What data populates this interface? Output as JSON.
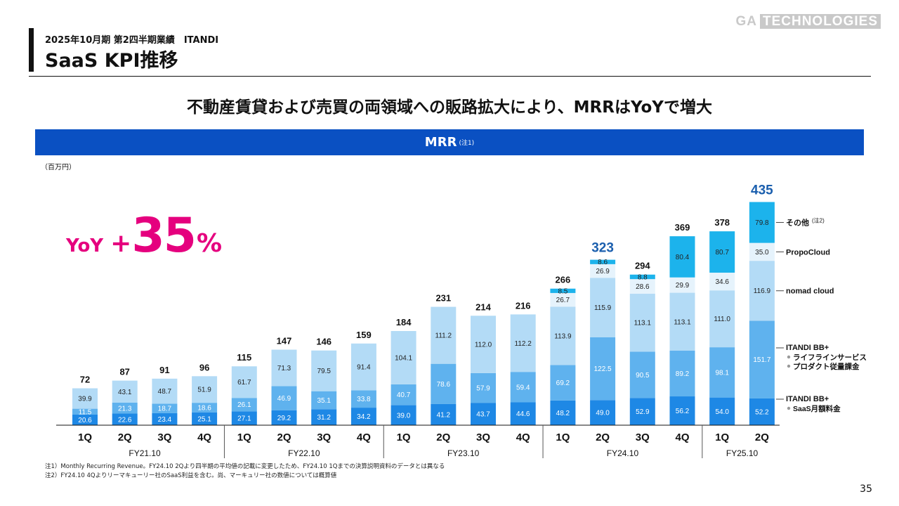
{
  "header": {
    "subtitle": "2025年10月期 第2四半期業績　ITANDI",
    "title": "SaaS KPI推移",
    "logo_ga": "GA",
    "logo_tech": "TECHNOLOGIES"
  },
  "headline": "不動産賃貸および売買の両領域への販路拡大により、MRRはYoYで増大",
  "banner": {
    "title": "MRR",
    "note": "(注1)"
  },
  "unit": "（百万円）",
  "yoy": {
    "label": "YoY",
    "sign": "+",
    "value": "35",
    "suffix": "%"
  },
  "footnotes": [
    "注1）Monthly Recurring Revenue。FY24.10 2Qより四半期の平均値の記載に変更したため、FY24.10 1Qまでの決算説明資料のデータとは異なる",
    "注2）FY24.10 4Qよりリーマキューリー社のSaaS利益を含む。尚、マーキュリー社の数値については概算値"
  ],
  "page_number": "35",
  "chart_data": {
    "type": "bar",
    "stacked": true,
    "categories": [
      "1Q",
      "2Q",
      "3Q",
      "4Q",
      "1Q",
      "2Q",
      "3Q",
      "4Q",
      "1Q",
      "2Q",
      "3Q",
      "4Q",
      "1Q",
      "2Q",
      "3Q",
      "4Q",
      "1Q",
      "2Q"
    ],
    "groups": [
      {
        "label": "FY21.10",
        "count": 4
      },
      {
        "label": "FY22.10",
        "count": 4
      },
      {
        "label": "FY23.10",
        "count": 4
      },
      {
        "label": "FY24.10",
        "count": 4
      },
      {
        "label": "FY25.10",
        "count": 2
      }
    ],
    "totals": [
      "72",
      "87",
      "91",
      "96",
      "115",
      "147",
      "146",
      "159",
      "184",
      "231",
      "214",
      "216",
      "266",
      "323",
      "294",
      "369",
      "378",
      "435"
    ],
    "highlight_totals": [
      13,
      17
    ],
    "series": [
      {
        "key": "bb_saas",
        "color": "#1e88e5",
        "values": [
          20.6,
          22.6,
          23.4,
          25.1,
          27.1,
          29.2,
          31.2,
          34.2,
          39.0,
          41.2,
          43.7,
          44.6,
          48.2,
          49.0,
          52.9,
          56.2,
          54.0,
          52.2
        ]
      },
      {
        "key": "bb_life",
        "color": "#5fb2ee",
        "values": [
          11.5,
          21.3,
          18.7,
          18.6,
          26.1,
          46.9,
          35.1,
          33.8,
          40.7,
          78.6,
          57.9,
          59.4,
          69.2,
          122.5,
          90.5,
          89.2,
          98.1,
          151.7
        ]
      },
      {
        "key": "nomad",
        "color": "#b3dbf6",
        "values": [
          39.9,
          43.1,
          48.7,
          51.9,
          61.7,
          71.3,
          79.5,
          91.4,
          104.1,
          111.2,
          112.0,
          112.2,
          113.9,
          115.9,
          113.1,
          113.1,
          111.0,
          116.9
        ]
      },
      {
        "key": "propo",
        "color": "#e6f3fc",
        "values": [
          null,
          null,
          null,
          null,
          null,
          null,
          null,
          null,
          null,
          null,
          null,
          null,
          26.7,
          26.9,
          28.6,
          29.9,
          34.6,
          35.0
        ]
      },
      {
        "key": "other",
        "color": "#1cb3ec",
        "values": [
          null,
          null,
          null,
          null,
          null,
          null,
          null,
          null,
          null,
          null,
          null,
          null,
          8.5,
          8.6,
          8.8,
          80.4,
          80.7,
          79.8
        ]
      }
    ],
    "legend": {
      "other": "その他",
      "other_note": "(注2)",
      "propo": "PropoCloud",
      "nomad": "nomad cloud",
      "life_title": "ITANDI BB+",
      "life_items": [
        "ライフラインサービス",
        "プロダクト従量課金"
      ],
      "saas_title": "ITANDI BB+",
      "saas_items": [
        "SaaS月額料金"
      ]
    },
    "colors": {
      "accent": "#0a50c2",
      "highlight": "#1b5fae",
      "yoy": "#e5007e"
    }
  }
}
